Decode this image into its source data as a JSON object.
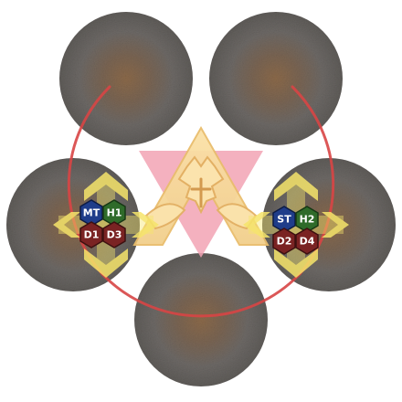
{
  "scene": {
    "background": "#ffffff",
    "puddle_color": "#6e6a66",
    "puddle_center_color": "#8a6a4c",
    "ring_color": "#d84545",
    "triangle_color": "#f2a3b4",
    "glyph_color": "#f5d79c",
    "arrow_color": "#f5e66a"
  },
  "puddles": [
    {
      "name": "top-left"
    },
    {
      "name": "top-right"
    },
    {
      "name": "middle-left"
    },
    {
      "name": "middle-right"
    },
    {
      "name": "bottom-center"
    }
  ],
  "groups": [
    {
      "name": "left",
      "markers": [
        {
          "label": "MT",
          "color": "#1f3d8a",
          "role": "tank"
        },
        {
          "label": "H1",
          "color": "#2f6b2a",
          "role": "healer"
        },
        {
          "label": "D1",
          "color": "#7a2323",
          "role": "dps"
        },
        {
          "label": "D3",
          "color": "#7a2323",
          "role": "dps"
        }
      ]
    },
    {
      "name": "right",
      "markers": [
        {
          "label": "ST",
          "color": "#1f3d8a",
          "role": "tank"
        },
        {
          "label": "H2",
          "color": "#2f6b2a",
          "role": "healer"
        },
        {
          "label": "D2",
          "color": "#7a2323",
          "role": "dps"
        },
        {
          "label": "D4",
          "color": "#7a2323",
          "role": "dps"
        }
      ]
    }
  ]
}
